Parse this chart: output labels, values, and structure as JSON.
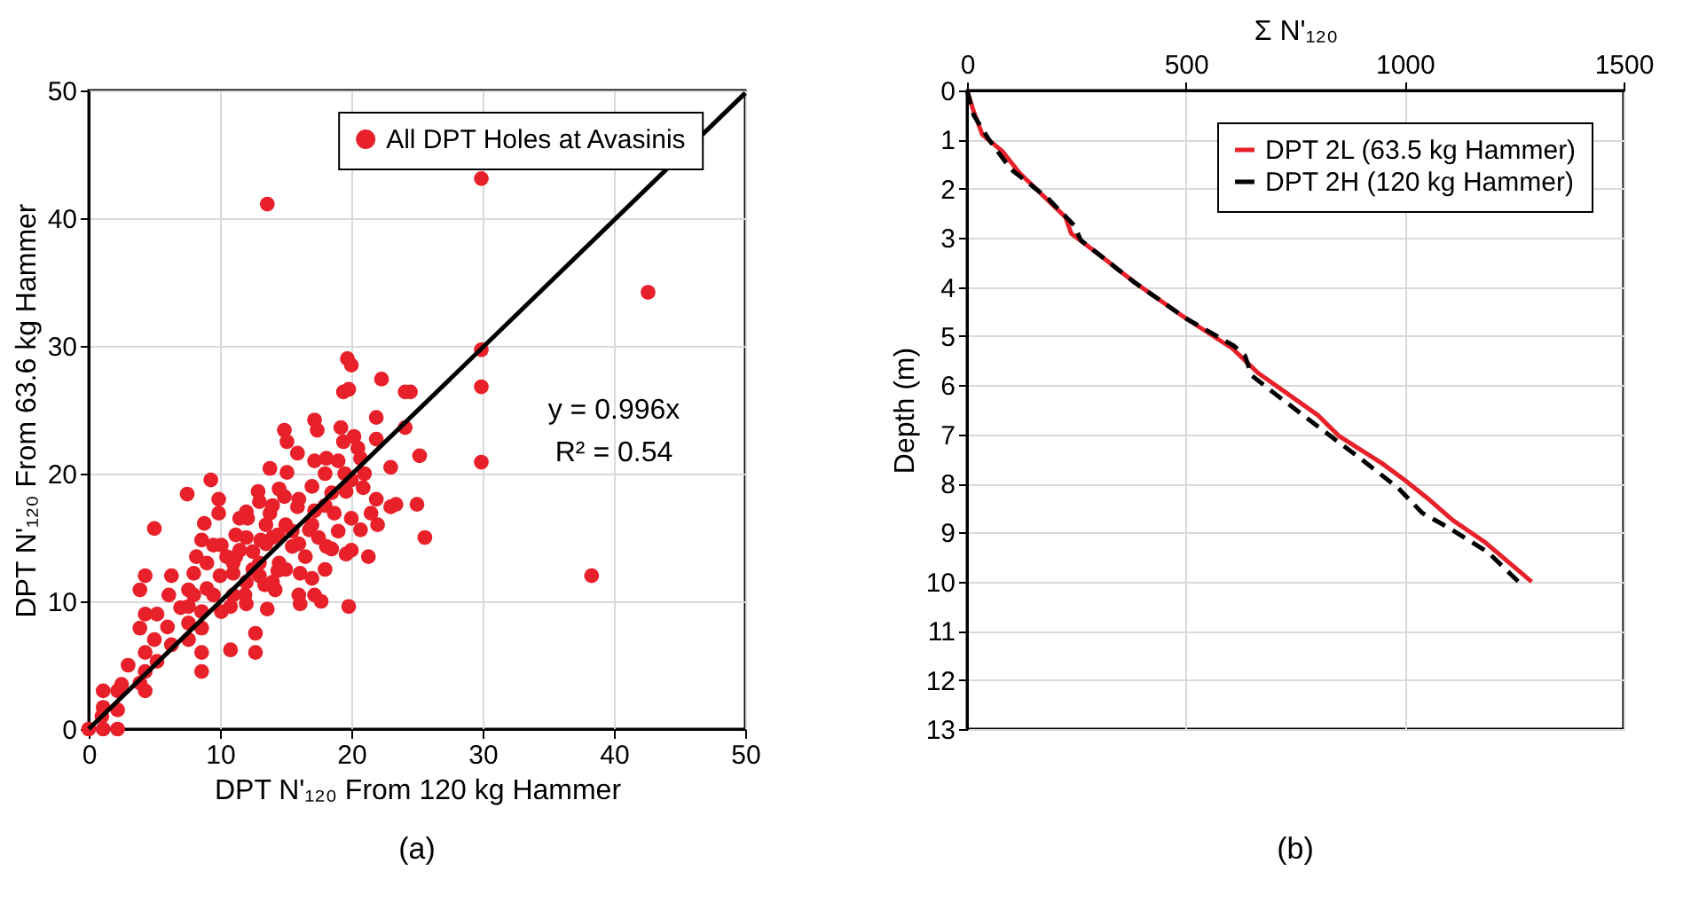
{
  "chart_data": [
    {
      "type": "scatter",
      "xlabel": "DPT N'₁₂₀  From 120 kg Hammer",
      "ylabel": "DPT  N'₁₂₀    From 63.6 kg Hammer",
      "xlim": [
        0,
        50
      ],
      "ylim": [
        0,
        50
      ],
      "xticks": [
        0,
        10,
        20,
        30,
        40,
        50
      ],
      "yticks": [
        0,
        10,
        20,
        30,
        40,
        50
      ],
      "grid": true,
      "legend": "top",
      "marker": "circle",
      "annotations": [
        "y = 0.996x",
        "R² = 0.54",
        "(a)"
      ],
      "series": [
        {
          "name": "All DPT Holes at Avasinis",
          "type": "scatter",
          "color": "#e8202a",
          "x": [
            0,
            1.1,
            2.2,
            1.1,
            1.1,
            2.2,
            2.2,
            3.9,
            4.3,
            4.3,
            5.2,
            4.3,
            3.9,
            4.3,
            5.2,
            3.9,
            4.3,
            6.1,
            6.3,
            5,
            6.3,
            7.5,
            8.6,
            8.6,
            7.6,
            7.6,
            7.6,
            7.6,
            8,
            8.2,
            8.6,
            8.8,
            8.6,
            8.6,
            9.3,
            9.9,
            9.9,
            9.5,
            10.1,
            9.5,
            10.1,
            10.8,
            10.8,
            11,
            11.2,
            11.2,
            12.1,
            12.5,
            12.7,
            12.7,
            11.9,
            12.9,
            13.1,
            13.4,
            13.6,
            13.8,
            13.8,
            14.4,
            14.4,
            14.2,
            14.9,
            15.1,
            15.1,
            14.9,
            15.5,
            15.9,
            15.9,
            16.1,
            16.1,
            16.8,
            17,
            17.2,
            17.4,
            17.2,
            17.2,
            17.2,
            17.7,
            18.1,
            18.1,
            18.5,
            18.7,
            19.2,
            19.4,
            19.4,
            19.8,
            19.8,
            19.6,
            19.6,
            20,
            20.2,
            20.7,
            20.7,
            20.9,
            21.3,
            21.5,
            21.9,
            21.9,
            21.9,
            23,
            23.4,
            24.1,
            24.1,
            25,
            25.2,
            25.6,
            11,
            11.5,
            12,
            12.5,
            13,
            13.5,
            14,
            14.5,
            15,
            15.5,
            16,
            16.5,
            17,
            17.5,
            18,
            18.5,
            12,
            13,
            10,
            10.5,
            9,
            9,
            11.5,
            14,
            16,
            17,
            18,
            19,
            19.5,
            20,
            20.5,
            14.5,
            13,
            12,
            8,
            7,
            6,
            5,
            3,
            2.5,
            1,
            15,
            16,
            18,
            19,
            20,
            22,
            21,
            23,
            12,
            11,
            14,
            13.5,
            19.7,
            20,
            22.3,
            24.5,
            13.6,
            29.9,
            42.6,
            29.9,
            29.9,
            29.9,
            38.3
          ],
          "values": [
            0,
            0,
            0,
            1.7,
            3,
            3,
            1.5,
            3.6,
            4.5,
            3,
            5.3,
            6,
            7.9,
            9,
            9,
            10.9,
            12,
            10.5,
            12,
            15.7,
            6.6,
            18.4,
            4.5,
            6,
            7,
            8.3,
            9.6,
            10.9,
            12.2,
            13.5,
            14.8,
            16.1,
            7.9,
            9.2,
            19.5,
            18,
            16.9,
            14.4,
            14.4,
            10.5,
            9.2,
            9.6,
            6.2,
            12.2,
            13.5,
            15.2,
            16.5,
            13.9,
            7.5,
            6,
            10.5,
            18.6,
            14.8,
            11.3,
            9.4,
            20.4,
            16.9,
            15.2,
            12.4,
            10.9,
            23.4,
            22.5,
            20.1,
            18.2,
            14.3,
            21.6,
            17.4,
            9.8,
            12.2,
            15.6,
            11.8,
            24.2,
            23.4,
            21,
            17.1,
            10.5,
            10,
            21.2,
            14.3,
            14.1,
            16.9,
            23.6,
            22.5,
            26.4,
            26.6,
            9.6,
            13.7,
            18.6,
            16.5,
            22.9,
            21.2,
            15.6,
            18.9,
            13.5,
            16.9,
            24.4,
            22.7,
            18,
            17.4,
            17.6,
            26.4,
            23.6,
            17.6,
            21.4,
            15,
            13,
            14,
            15,
            12.5,
            13,
            14.5,
            15,
            13,
            16,
            15.5,
            14.5,
            13.5,
            16,
            15,
            17.5,
            18.5,
            11.5,
            12,
            12,
            13.5,
            11,
            13,
            16.5,
            17.5,
            18,
            19,
            20,
            21,
            20,
            19.5,
            22,
            18.8,
            17.8,
            17,
            10.5,
            9.5,
            8,
            7,
            5,
            3.5,
            1,
            12.5,
            10.5,
            12.5,
            15.5,
            14,
            16,
            20,
            20.5,
            9.8,
            10.5,
            11.5,
            16,
            29,
            28.5,
            27.4,
            26.4,
            41.1,
            43.1,
            34.2,
            29.7,
            26.8,
            20.9,
            12
          ]
        },
        {
          "type": "line",
          "color": "#000000",
          "marker": "none",
          "line_style": "solid",
          "x": [
            0,
            50
          ],
          "values": [
            0,
            49.8
          ]
        }
      ]
    },
    {
      "type": "line",
      "xlabel": "Σ N'₁₂₀",
      "ylabel": "Depth (m)",
      "xlim": [
        0,
        1500
      ],
      "ylim": [
        13,
        0
      ],
      "xticks": [
        0,
        500,
        1000,
        1500
      ],
      "yticks": [
        0,
        1,
        2,
        3,
        4,
        5,
        6,
        7,
        8,
        9,
        10,
        11,
        12,
        13
      ],
      "grid": true,
      "legend": "top right",
      "annotations": [
        "(b)"
      ],
      "series": [
        {
          "name": "DPT 2L (63.5 kg Hammer)",
          "color": "#e8202a",
          "line_style": "solid",
          "x": [
            0,
            16,
            35,
            81,
            120,
            185,
            225,
            238,
            303,
            383,
            500,
            606,
            646,
            665,
            803,
            849,
            948,
            1000,
            1052,
            1110,
            1184,
            1290
          ],
          "values": [
            0,
            0.45,
            0.9,
            1.24,
            1.68,
            2.24,
            2.58,
            2.91,
            3.35,
            3.91,
            4.64,
            5.25,
            5.59,
            5.75,
            6.62,
            7.03,
            7.59,
            7.93,
            8.3,
            8.75,
            9.2,
            10
          ]
        },
        {
          "name": "DPT 2H (120 kg Hammer)",
          "color": "#000000",
          "line_style": "dashed",
          "x": [
            0,
            15,
            50,
            100,
            185,
            245,
            260,
            303,
            383,
            500,
            610,
            635,
            650,
            700,
            815,
            900,
            986,
            1040,
            1100,
            1190,
            1260
          ],
          "values": [
            0,
            0.5,
            1.0,
            1.6,
            2.2,
            2.75,
            3.05,
            3.35,
            3.91,
            4.64,
            5.2,
            5.4,
            5.8,
            6.15,
            6.93,
            7.5,
            8.1,
            8.6,
            8.9,
            9.4,
            10
          ]
        }
      ]
    }
  ]
}
